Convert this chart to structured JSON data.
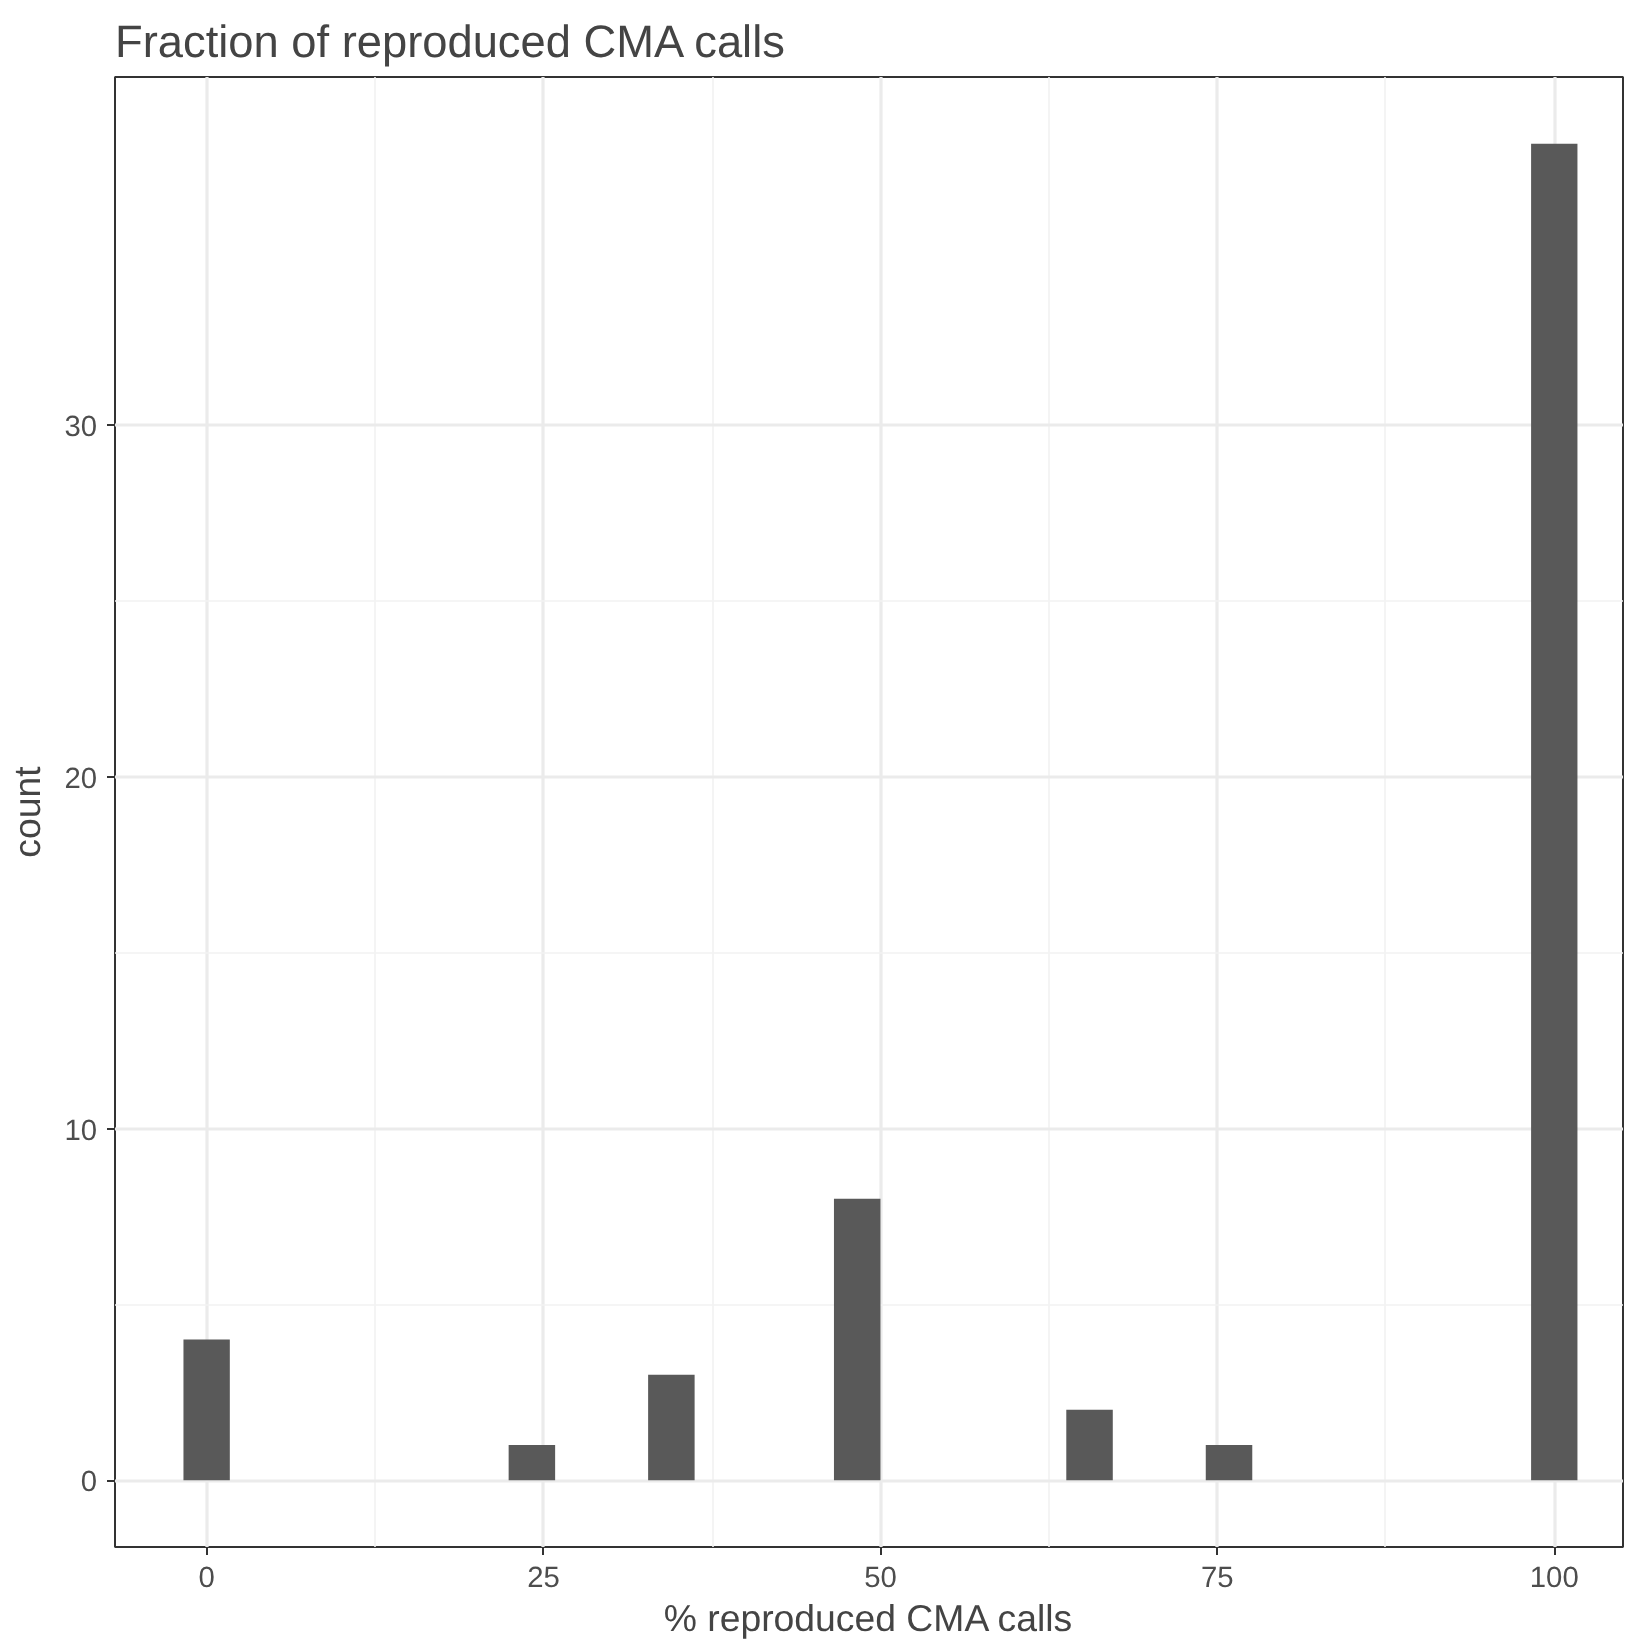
{
  "chart_data": {
    "type": "histogram",
    "title": "Fraction of reproduced CMA calls",
    "xlabel": "% reproduced CMA calls",
    "ylabel": "count",
    "bins": [
      -1.72,
      1.72,
      5.17,
      8.62,
      12.07,
      15.52,
      18.97,
      22.41,
      25.86,
      29.31,
      32.76,
      36.21,
      39.66,
      43.1,
      46.55,
      50.0,
      53.45,
      56.9,
      60.34,
      63.79,
      67.24,
      70.69,
      74.14,
      77.59,
      81.03,
      84.48,
      87.93,
      91.38,
      94.83,
      98.28,
      101.72
    ],
    "values": [
      4,
      0,
      0,
      0,
      0,
      0,
      0,
      1,
      0,
      0,
      3,
      0,
      0,
      0,
      8,
      0,
      0,
      0,
      0,
      2,
      0,
      0,
      1,
      0,
      0,
      0,
      0,
      0,
      0,
      38
    ],
    "color": "#595959",
    "xlim": [
      -6.8,
      105.1
    ],
    "ylim": [
      -1.9,
      39.9
    ],
    "xticks": [
      0,
      25,
      50,
      75,
      100
    ],
    "yticks": [
      0,
      10,
      20,
      30
    ],
    "grid": true
  }
}
